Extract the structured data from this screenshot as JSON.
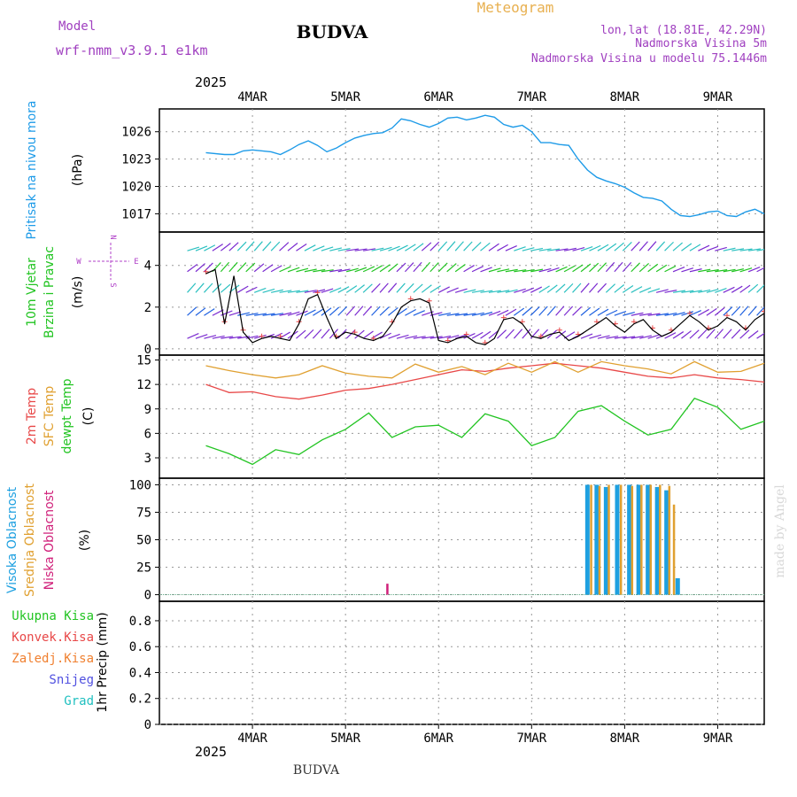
{
  "header": {
    "model_label": "Model",
    "model_name": "wrf-nmm_v3.9.1 e1km",
    "station": "BUDVA",
    "product": "Meteogram",
    "coords": "lon,lat (18.81E, 42.29N)",
    "elevation": "Nadmorska Visina 5m",
    "model_elevation": "Nadmorska Visina u modelu 75.1446m"
  },
  "footer": {
    "station": "BUDVA",
    "credit": "made by Angel"
  },
  "colors": {
    "pressure": "#1e9be8",
    "wind": "#22c422",
    "wind_label_purple": "#b040c8",
    "temp2m": "#e84848",
    "sfc": "#e0a030",
    "dew": "#22c422",
    "high": "#1ea0e0",
    "mid": "#e0a030",
    "low": "#d0207a",
    "total": "#22c422",
    "conv": "#e84848",
    "frozen": "#f08030",
    "snow": "#5050e0",
    "grad": "#20c0c0",
    "meta_purple": "#a040c0",
    "meteo_orange": "#e8b050"
  },
  "chart_data": [
    {
      "id": "pressure",
      "type": "line",
      "ylabel_lines": [
        "Pritisak na nivou mora"
      ],
      "unit": "(hPa)",
      "ylim": [
        1015,
        1028.5
      ],
      "yticks": [
        1017,
        1020,
        1023,
        1026
      ],
      "grid": true,
      "x_days": [
        "2025-03-03",
        "2025-03-09"
      ],
      "x": [
        0.0,
        0.2,
        0.3,
        0.4,
        0.5,
        0.7,
        0.8,
        0.9,
        1.0,
        1.1,
        1.2,
        1.3,
        1.4,
        1.5,
        1.6,
        1.7,
        1.8,
        1.9,
        2.0,
        2.1,
        2.2,
        2.3,
        2.4,
        2.5,
        2.6,
        2.7,
        2.8,
        2.9,
        3.0,
        3.1,
        3.2,
        3.3,
        3.4,
        3.5,
        3.6,
        3.7,
        3.8,
        3.9,
        4.0,
        4.1,
        4.2,
        4.3,
        4.4,
        4.5,
        4.6,
        4.7,
        4.8,
        4.9,
        5.0,
        5.1,
        5.2,
        5.3,
        5.4,
        5.5,
        5.6,
        5.7,
        5.8,
        5.9,
        6.0
      ],
      "y": [
        1023.7,
        1023.5,
        1023.5,
        1023.9,
        1024.0,
        1023.8,
        1023.5,
        1024.0,
        1024.6,
        1025.0,
        1024.5,
        1023.8,
        1024.2,
        1024.8,
        1025.3,
        1025.6,
        1025.8,
        1025.9,
        1026.4,
        1027.4,
        1027.2,
        1026.8,
        1026.5,
        1026.9,
        1027.5,
        1027.6,
        1027.3,
        1027.5,
        1027.8,
        1027.6,
        1026.8,
        1026.5,
        1026.7,
        1026.0,
        1024.8,
        1024.8,
        1024.6,
        1024.5,
        1023.0,
        1021.8,
        1021.0,
        1020.6,
        1020.3,
        1019.9,
        1019.3,
        1018.8,
        1018.7,
        1018.4,
        1017.5,
        1016.8,
        1016.7,
        1016.9,
        1017.2,
        1017.3,
        1016.8,
        1016.7,
        1017.2,
        1017.5,
        1017.0
      ]
    },
    {
      "id": "wind",
      "type": "line",
      "ylabel_lines": [
        "10m Vjetar",
        "Brzina i Pravac"
      ],
      "unit": "(m/s)",
      "ylim": [
        -0.3,
        5.6
      ],
      "yticks": [
        0,
        2,
        4
      ],
      "grid": true,
      "compass": {
        "n": "N",
        "s": "S",
        "e": "E",
        "w": "W"
      },
      "x": [
        0.0,
        0.1,
        0.2,
        0.3,
        0.4,
        0.5,
        0.6,
        0.7,
        0.8,
        0.9,
        1.0,
        1.1,
        1.2,
        1.3,
        1.4,
        1.5,
        1.6,
        1.7,
        1.8,
        1.9,
        2.0,
        2.1,
        2.2,
        2.3,
        2.4,
        2.5,
        2.6,
        2.7,
        2.8,
        2.9,
        3.0,
        3.1,
        3.2,
        3.3,
        3.4,
        3.5,
        3.6,
        3.7,
        3.8,
        3.9,
        4.0,
        4.1,
        4.2,
        4.3,
        4.4,
        4.5,
        4.6,
        4.7,
        4.8,
        4.9,
        5.0,
        5.1,
        5.2,
        5.3,
        5.4,
        5.5,
        5.6,
        5.7,
        5.8,
        5.9,
        6.0
      ],
      "y": [
        3.6,
        3.8,
        1.2,
        3.5,
        0.8,
        0.3,
        0.5,
        0.6,
        0.5,
        0.4,
        1.2,
        2.4,
        2.6,
        1.5,
        0.5,
        0.8,
        0.7,
        0.5,
        0.4,
        0.6,
        1.2,
        2.0,
        2.3,
        2.4,
        2.2,
        0.4,
        0.3,
        0.5,
        0.6,
        0.3,
        0.2,
        0.5,
        1.4,
        1.5,
        1.2,
        0.6,
        0.5,
        0.7,
        0.8,
        0.4,
        0.6,
        0.9,
        1.2,
        1.5,
        1.1,
        0.8,
        1.2,
        1.4,
        0.9,
        0.6,
        0.8,
        1.2,
        1.6,
        1.3,
        0.9,
        1.1,
        1.5,
        1.3,
        0.9,
        1.4,
        1.7
      ]
    },
    {
      "id": "temperature",
      "type": "line",
      "ylabel_lines": [
        "2m Temp",
        "SFC Temp",
        "dewpt Temp"
      ],
      "unit": "(C)",
      "ylim": [
        0.5,
        15.6
      ],
      "yticks": [
        3,
        6,
        9,
        12,
        15
      ],
      "grid": true,
      "x": [
        0.0,
        0.25,
        0.5,
        0.75,
        1.0,
        1.25,
        1.5,
        1.75,
        2.0,
        2.25,
        2.5,
        2.75,
        3.0,
        3.25,
        3.5,
        3.75,
        4.0,
        4.25,
        4.5,
        4.75,
        5.0,
        5.25,
        5.5,
        5.75,
        6.0
      ],
      "series": [
        {
          "name": "2m Temp",
          "values": [
            12.0,
            11.0,
            11.1,
            10.5,
            10.2,
            10.7,
            11.3,
            11.5,
            12.0,
            12.6,
            13.2,
            13.8,
            13.6,
            14.0,
            14.3,
            14.6,
            14.3,
            14.0,
            13.5,
            13.0,
            12.8,
            13.2,
            12.8,
            12.6,
            12.3
          ]
        },
        {
          "name": "SFC Temp",
          "values": [
            14.3,
            13.7,
            13.2,
            12.8,
            13.2,
            14.3,
            13.4,
            13.0,
            12.8,
            14.5,
            13.5,
            14.2,
            13.2,
            14.6,
            13.5,
            14.8,
            13.5,
            14.8,
            14.3,
            13.9,
            13.3,
            14.8,
            13.5,
            13.6,
            14.6
          ]
        },
        {
          "name": "dewpt Temp",
          "values": [
            4.5,
            3.5,
            2.2,
            4.0,
            3.4,
            5.2,
            6.5,
            8.5,
            5.5,
            6.8,
            7.0,
            5.5,
            8.4,
            7.5,
            4.5,
            5.5,
            8.7,
            9.4,
            7.5,
            5.8,
            6.5,
            10.3,
            9.2,
            6.5,
            7.5
          ]
        }
      ]
    },
    {
      "id": "clouds",
      "type": "bar",
      "ylabel_lines": [
        "Visoka Oblacnost",
        "Srednja Oblacnost",
        "Niska Oblacnost"
      ],
      "unit": "(%)",
      "ylim": [
        -6,
        106
      ],
      "yticks": [
        0,
        25,
        50,
        75,
        100
      ],
      "grid": true,
      "series": [
        {
          "name": "Visoka Oblacnost",
          "x": [
            4.1,
            4.2,
            4.3,
            4.42,
            4.55,
            4.65,
            4.75,
            4.85,
            4.95,
            5.07
          ],
          "values": [
            100,
            100,
            98,
            100,
            100,
            100,
            100,
            98,
            95,
            15
          ]
        },
        {
          "name": "Srednja Oblacnost",
          "x": [
            4.14,
            4.23,
            4.33,
            4.46,
            4.58,
            4.68,
            4.78,
            4.88,
            4.98,
            5.03
          ],
          "values": [
            100,
            99,
            100,
            100,
            99,
            100,
            100,
            100,
            99,
            82
          ]
        },
        {
          "name": "Niska Oblacnost",
          "x": [
            1.95
          ],
          "values": [
            10
          ]
        }
      ]
    },
    {
      "id": "precip",
      "type": "bar",
      "ylabel_lines": [
        "Ukupna Kisa",
        "Konvek.Kisa",
        "Zaledj.Kisa",
        "Snijeg",
        "Grad"
      ],
      "unit": "1hr Precip (mm)",
      "ylim": [
        0,
        0.95
      ],
      "yticks": [
        0,
        0.2,
        0.4,
        0.6,
        0.8
      ],
      "ytick_labels": [
        "0",
        "0.2",
        "0.4",
        "0.6",
        "0.8"
      ],
      "grid": true,
      "series": []
    }
  ],
  "xaxis": {
    "year": "2025",
    "labels": [
      "4MAR",
      "5MAR",
      "6MAR",
      "7MAR",
      "8MAR",
      "9MAR"
    ],
    "positions": [
      0.5,
      1.5,
      2.5,
      3.5,
      4.5,
      5.5
    ]
  }
}
